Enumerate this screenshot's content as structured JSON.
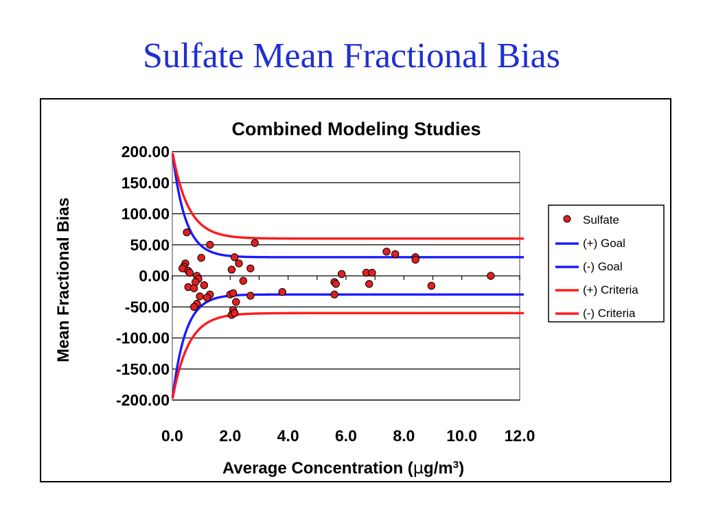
{
  "slide_title": "Sulfate Mean Fractional Bias",
  "chart_data": {
    "type": "scatter",
    "title": "Combined Modeling Studies",
    "xlabel": "Average Concentration (",
    "xlabel_mu": "µ",
    "xlabel_rest": "g/m",
    "xlabel_sup": "3",
    "xlabel_close": ")",
    "ylabel": "Mean Fractional Bias",
    "xlim": [
      0,
      12
    ],
    "ylim": [
      -200,
      200
    ],
    "x_ticks": [
      "0.0",
      "2.0",
      "4.0",
      "6.0",
      "8.0",
      "10.0",
      "12.0"
    ],
    "y_ticks": [
      "200.00",
      "150.00",
      "100.00",
      "50.00",
      "0.00",
      "-50.00",
      "-100.00",
      "-150.00",
      "-200.00"
    ],
    "grid": "horizontal",
    "legend_position": "right",
    "legend": [
      {
        "label": "Sulfate",
        "kind": "marker",
        "color": "#e02020"
      },
      {
        "label": "(+) Goal",
        "kind": "line",
        "color": "#1a1aff"
      },
      {
        "label": "(-) Goal",
        "kind": "line",
        "color": "#1a1aff"
      },
      {
        "label": "(+) Criteria",
        "kind": "line",
        "color": "#ff1a1a"
      },
      {
        "label": "(-) Criteria",
        "kind": "line",
        "color": "#ff1a1a"
      }
    ],
    "series": [
      {
        "name": "Sulfate",
        "kind": "scatter",
        "color": "#e02020",
        "points": [
          [
            0.5,
            70
          ],
          [
            0.45,
            20
          ],
          [
            0.4,
            15
          ],
          [
            0.35,
            12
          ],
          [
            0.55,
            8
          ],
          [
            0.6,
            5
          ],
          [
            0.85,
            0
          ],
          [
            0.9,
            -5
          ],
          [
            0.8,
            -10
          ],
          [
            1.1,
            -15
          ],
          [
            0.55,
            -18
          ],
          [
            0.75,
            -20
          ],
          [
            1.0,
            29
          ],
          [
            1.3,
            50
          ],
          [
            0.95,
            -33
          ],
          [
            1.3,
            -30
          ],
          [
            0.85,
            -45
          ],
          [
            0.75,
            -50
          ],
          [
            1.2,
            -35
          ],
          [
            2.15,
            30
          ],
          [
            2.3,
            20
          ],
          [
            2.05,
            10
          ],
          [
            2.7,
            12
          ],
          [
            2.45,
            -8
          ],
          [
            2.0,
            -30
          ],
          [
            2.1,
            -28
          ],
          [
            2.2,
            -42
          ],
          [
            2.7,
            -32
          ],
          [
            2.1,
            -55
          ],
          [
            2.05,
            -63
          ],
          [
            2.15,
            -60
          ],
          [
            2.85,
            53
          ],
          [
            3.8,
            -26
          ],
          [
            5.6,
            -10
          ],
          [
            5.65,
            -13
          ],
          [
            5.85,
            3
          ],
          [
            5.6,
            -30
          ],
          [
            6.7,
            5
          ],
          [
            6.9,
            5
          ],
          [
            6.8,
            -13
          ],
          [
            7.4,
            39
          ],
          [
            7.7,
            35
          ],
          [
            8.4,
            30
          ],
          [
            8.4,
            26
          ],
          [
            8.95,
            -16
          ],
          [
            11.0,
            0
          ]
        ]
      },
      {
        "name": "(+) Goal",
        "kind": "curve",
        "color": "#1a1aff",
        "asymptote": 30,
        "decay": 0.45
      },
      {
        "name": "(-) Goal",
        "kind": "curve",
        "color": "#1a1aff",
        "asymptote": -30,
        "decay": 0.45
      },
      {
        "name": "(+) Criteria",
        "kind": "curve",
        "color": "#ff1a1a",
        "asymptote": 60,
        "decay": 0.55
      },
      {
        "name": "(-) Criteria",
        "kind": "curve",
        "color": "#ff1a1a",
        "asymptote": -60,
        "decay": 0.55
      }
    ]
  }
}
